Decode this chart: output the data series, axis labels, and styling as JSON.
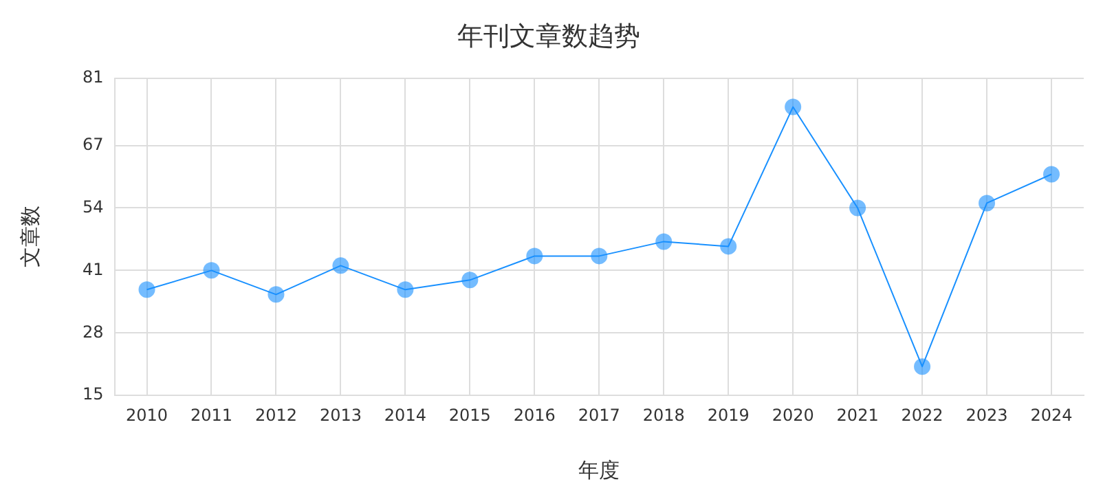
{
  "chart_data": {
    "type": "line",
    "title": "年刊文章数趋势",
    "xlabel": "年度",
    "ylabel": "文章数",
    "categories": [
      "2010",
      "2011",
      "2012",
      "2013",
      "2014",
      "2015",
      "2016",
      "2017",
      "2018",
      "2019",
      "2020",
      "2021",
      "2022",
      "2023",
      "2024"
    ],
    "series": [
      {
        "color": "#1890ff",
        "values": [
          37,
          41,
          36,
          42,
          37,
          39,
          44,
          44,
          47,
          46,
          75,
          54,
          21,
          55,
          61
        ]
      }
    ],
    "ylim": [
      15,
      81
    ],
    "yticks": [
      15,
      28,
      41,
      54,
      67,
      81
    ],
    "grid": true,
    "legend": false,
    "marker": "circle",
    "line_style": "solid"
  }
}
